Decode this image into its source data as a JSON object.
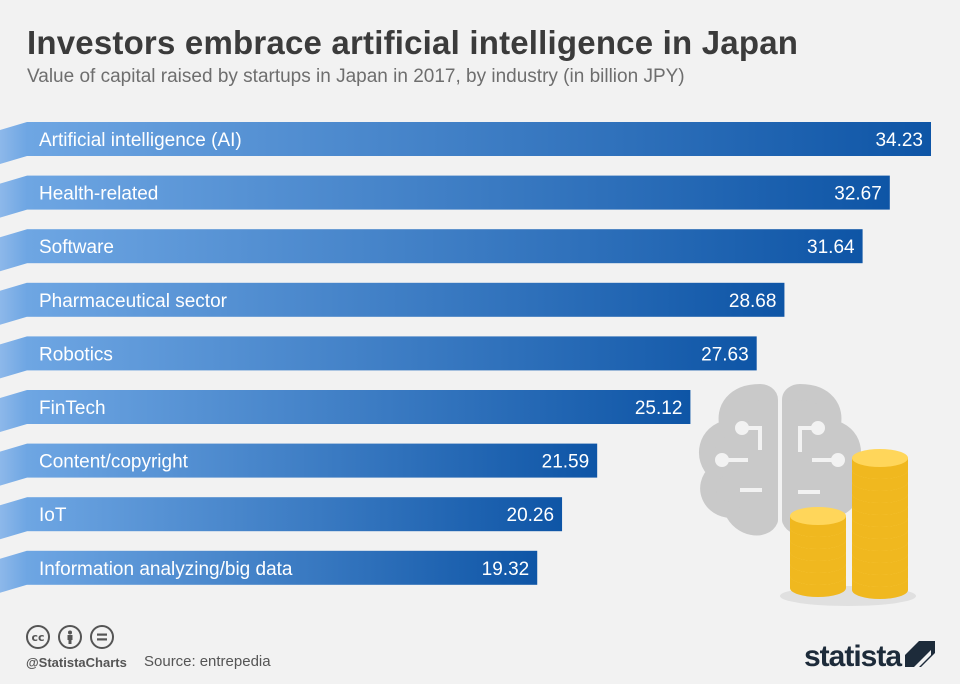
{
  "header": {
    "title": "Investors embrace artificial intelligence in Japan",
    "subtitle": "Value of capital raised by startups in Japan in 2017, by industry (in billion JPY)"
  },
  "chart_data": {
    "type": "bar",
    "orientation": "horizontal",
    "categories": [
      "Artificial intelligence (AI)",
      "Health-related",
      "Software",
      "Pharmaceutical sector",
      "Robotics",
      "FinTech",
      "Content/copyright",
      "IoT",
      "Information analyzing/big data"
    ],
    "values": [
      34.23,
      32.67,
      31.64,
      28.68,
      27.63,
      25.12,
      21.59,
      20.26,
      19.32
    ],
    "title": "Investors embrace artificial intelligence in Japan",
    "xlabel": "",
    "ylabel": "",
    "xlim": [
      0,
      34.23
    ],
    "grid": false,
    "legend": "none",
    "bar_color_start": "#6aa2e0",
    "bar_color_end": "#0f56a8"
  },
  "footer": {
    "handle": "@StatistaCharts",
    "source_label": "Source:",
    "source_value": "entrepedia",
    "brand": "statista",
    "license_icons": [
      "cc-icon",
      "by-icon",
      "nd-icon"
    ]
  },
  "colors": {
    "background": "#f2f2f2",
    "title": "#3b3b3b",
    "coin": "#f7c531",
    "brain": "#c8c8c8"
  }
}
